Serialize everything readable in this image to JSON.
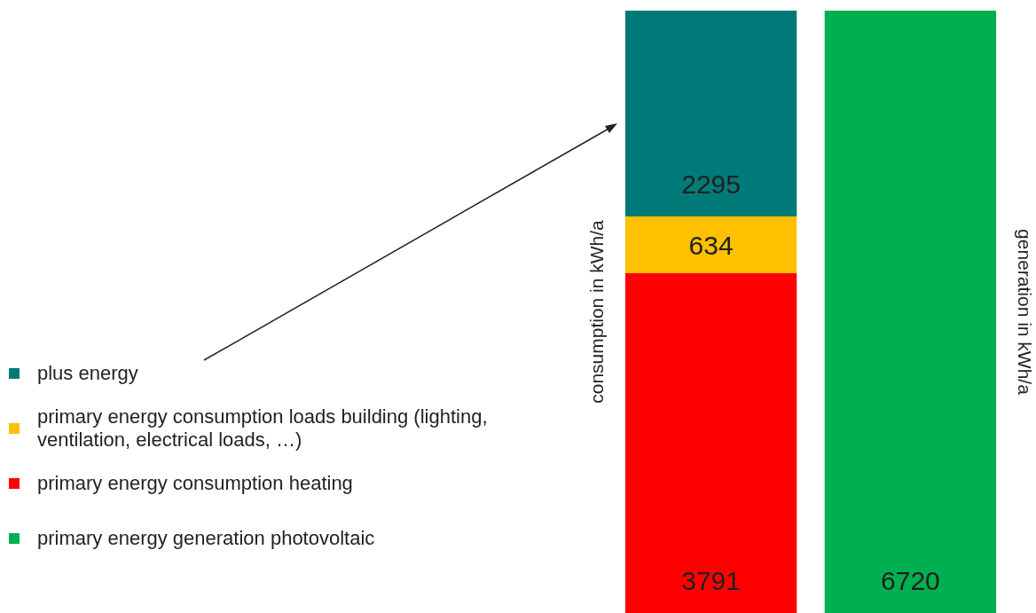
{
  "chart_data": {
    "type": "bar",
    "stacked": true,
    "categories": [
      null,
      null
    ],
    "ylabel": "consumption in kWh/a",
    "y2label": "generation in kWh/a",
    "series": [
      {
        "name": "primary energy generation photovoltaic",
        "color": "#00b050",
        "values": [
          null,
          6720
        ]
      },
      {
        "name": "primary energy consumption heating",
        "color": "#ff0000",
        "values": [
          3791,
          null
        ]
      },
      {
        "name": "primary energy consumption loads building (lighting, ventilation, electrical loads, …)",
        "color": "#ffc000",
        "values": [
          634,
          null
        ]
      },
      {
        "name": "plus energy",
        "color": "#007a78",
        "values": [
          2295,
          null
        ]
      }
    ],
    "data_labels": true,
    "legend": "left",
    "grid": false
  }
}
